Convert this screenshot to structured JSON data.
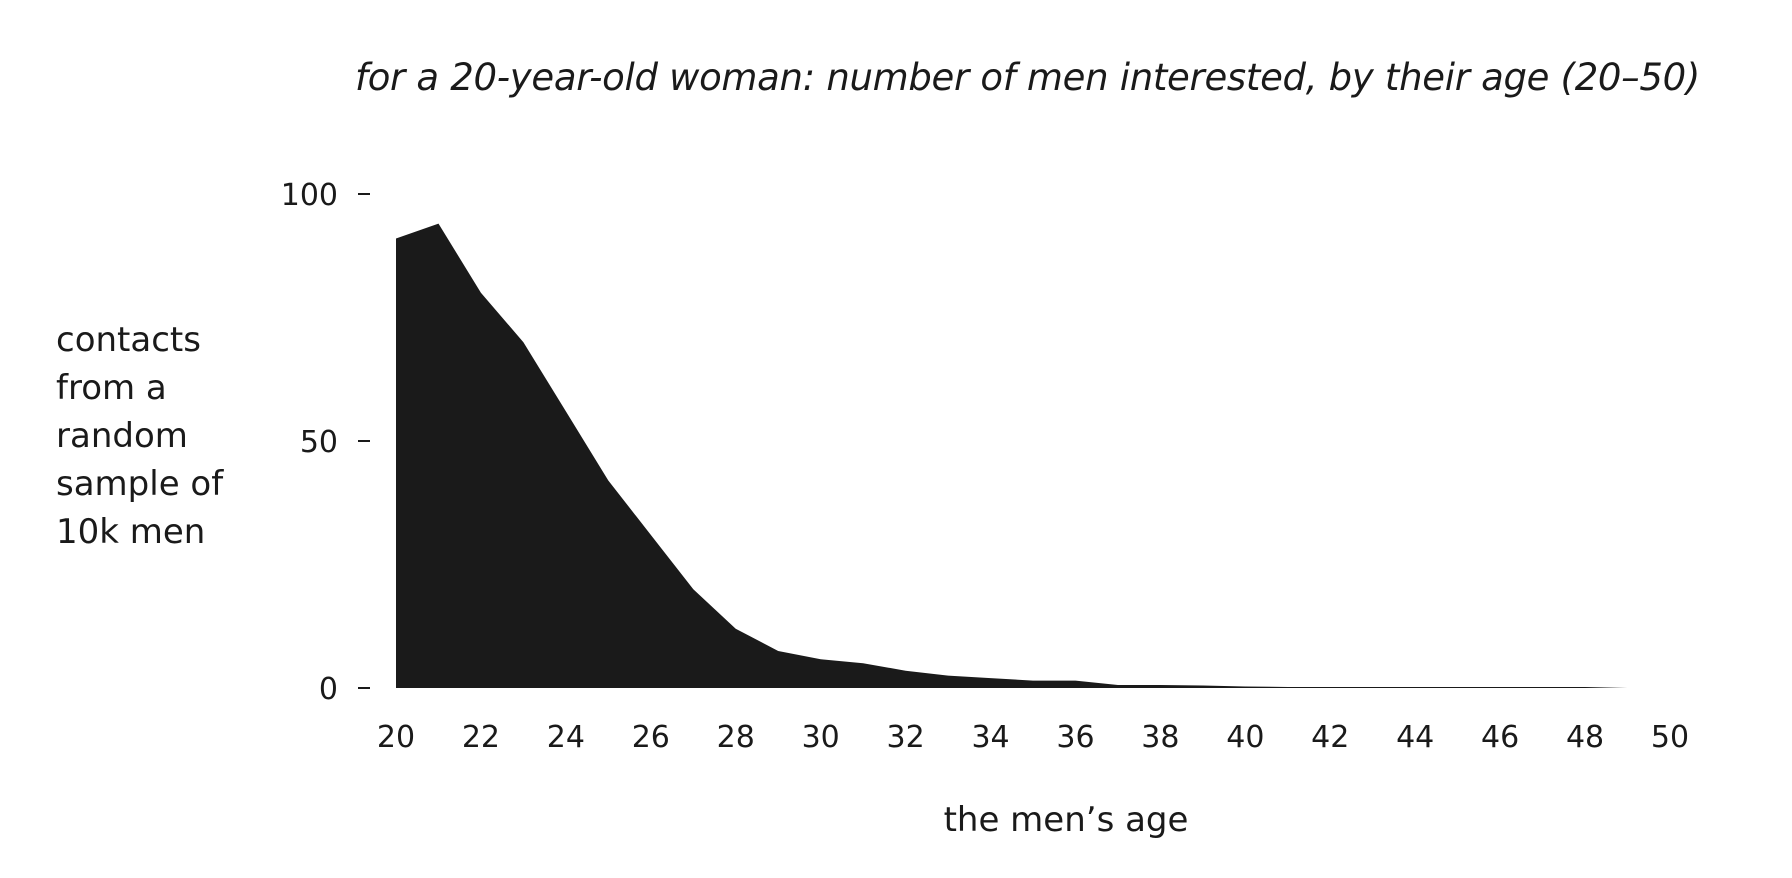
{
  "chart_data": {
    "type": "area",
    "title": "for a 20-year-old woman: number of men interested, by their age (20–50)",
    "xlabel": "the men’s age",
    "ylabel": "contacts from a random sample of 10k men",
    "x": [
      20,
      21,
      22,
      23,
      24,
      25,
      26,
      27,
      28,
      29,
      30,
      31,
      32,
      33,
      34,
      35,
      36,
      37,
      38,
      39,
      40,
      41,
      42,
      43,
      44,
      45,
      46,
      47,
      48,
      49
    ],
    "values": [
      91,
      94,
      80,
      70,
      56,
      42,
      31,
      20,
      12,
      7.5,
      5.8,
      5,
      3.5,
      2.5,
      2,
      1.5,
      1.5,
      0.6,
      0.6,
      0.5,
      0.3,
      0.2,
      0.2,
      0.2,
      0.2,
      0.2,
      0.2,
      0.2,
      0.2,
      0
    ],
    "xlim": [
      20,
      50
    ],
    "ylim": [
      0,
      100
    ],
    "xticks": [
      20,
      22,
      24,
      26,
      28,
      30,
      32,
      34,
      36,
      38,
      40,
      42,
      44,
      46,
      48,
      50
    ],
    "yticks": [
      0,
      50,
      100
    ],
    "fill_color": "#1a1a1a",
    "grid": false,
    "legend": "none"
  }
}
